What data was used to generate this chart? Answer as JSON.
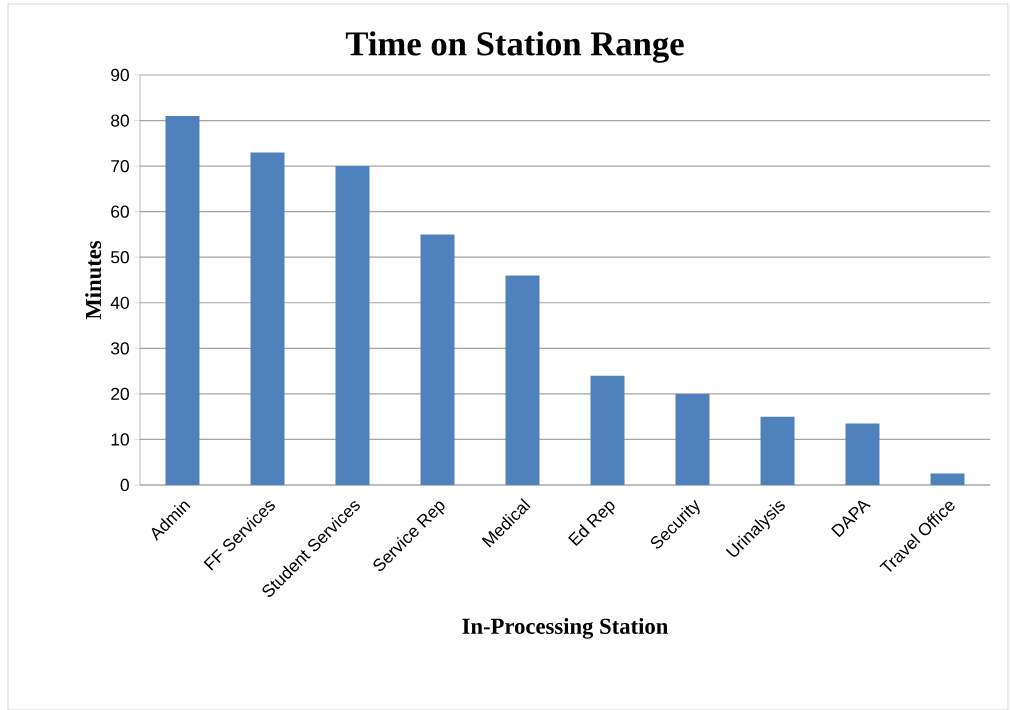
{
  "chart_data": {
    "type": "bar",
    "title": "Time on Station Range",
    "xlabel": "In-Processing Station",
    "ylabel": "Minutes",
    "categories": [
      "Admin",
      "FF Services",
      "Student Services",
      "Service Rep",
      "Medical",
      "Ed Rep",
      "Security",
      "Urinalysis",
      "DAPA",
      "Travel Office"
    ],
    "values": [
      81,
      73,
      70,
      55,
      46,
      24,
      20,
      15,
      13.5,
      2.5
    ],
    "color": "#4f81bd",
    "ylim": [
      0,
      90
    ],
    "yticks": [
      0,
      10,
      20,
      30,
      40,
      50,
      60,
      70,
      80,
      90
    ],
    "grid": "y"
  }
}
